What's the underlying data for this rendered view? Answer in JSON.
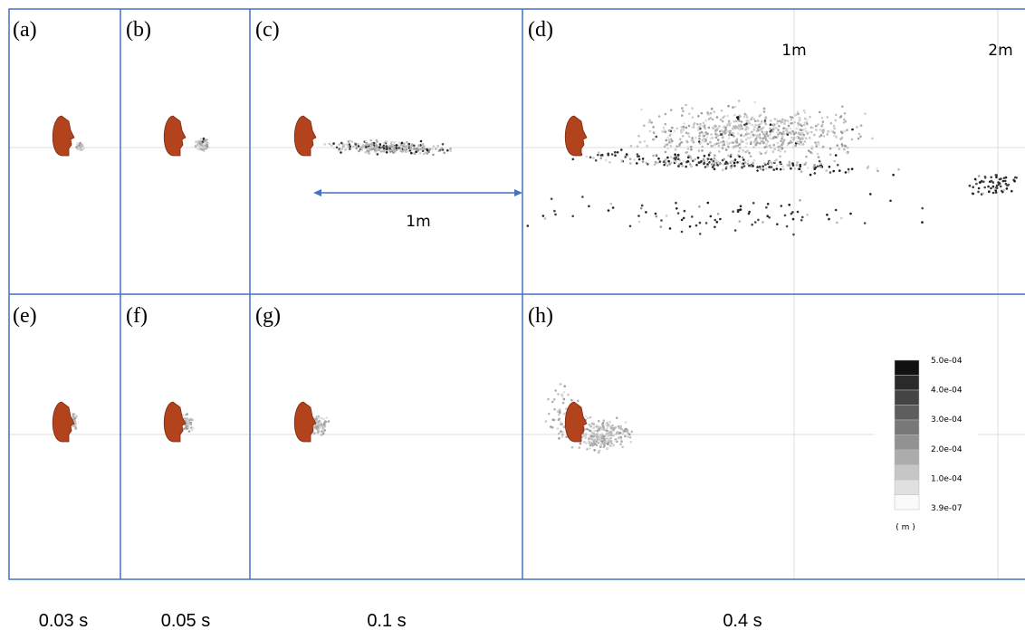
{
  "panels": [
    "(a)",
    "(b)",
    "(c)",
    "(d)",
    "(e)",
    "(f)",
    "(g)",
    "(h)"
  ],
  "times": [
    "0.03 s",
    "0.05 s",
    "0.1 s",
    "0.4 s"
  ],
  "distances": {
    "axis": [
      "1m",
      "2m"
    ],
    "arrow": "1m"
  },
  "colorbar": {
    "ticks": [
      "5.0e-04",
      "4.0e-04",
      "3.0e-04",
      "2.0e-04",
      "1.0e-04",
      "3.9e-07"
    ],
    "unit": "( m )"
  }
}
